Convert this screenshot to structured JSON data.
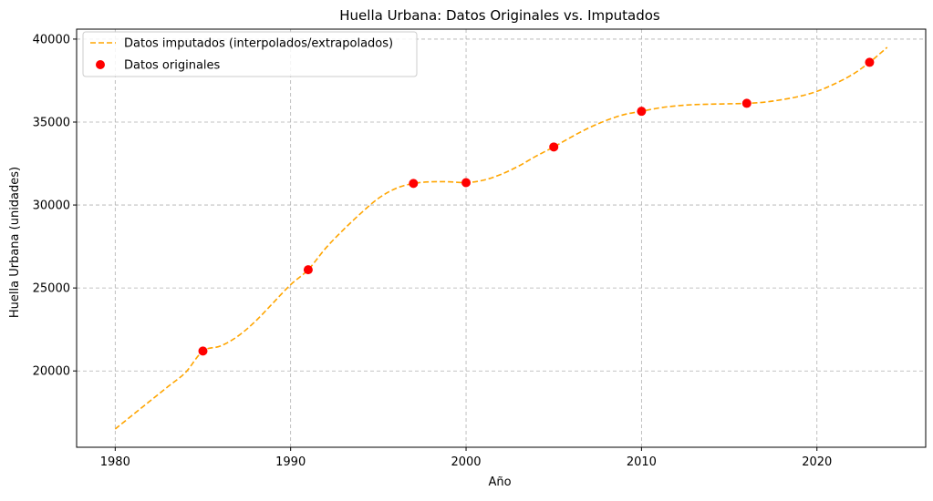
{
  "chart_data": {
    "type": "line",
    "title": "Huella Urbana: Datos Originales vs. Imputados",
    "xlabel": "Año",
    "ylabel": "Huella Urbana (unidades)",
    "xlim": [
      1977.8,
      2026.2
    ],
    "ylim": [
      15400,
      40600
    ],
    "xticks": [
      1980,
      1990,
      2000,
      2010,
      2020
    ],
    "yticks": [
      20000,
      25000,
      30000,
      35000,
      40000
    ],
    "grid": true,
    "legend_position": "top-left",
    "series": [
      {
        "name": "Datos imputados (interpolados/extrapolados)",
        "kind": "line",
        "style": "dashed",
        "color": "#FFA500",
        "x": [
          1980,
          1981,
          1982,
          1983,
          1984,
          1985,
          1986,
          1987,
          1988,
          1989,
          1990,
          1991,
          1992,
          1993,
          1994,
          1995,
          1996,
          1997,
          1998,
          1999,
          2000,
          2001,
          2002,
          2003,
          2004,
          2005,
          2006,
          2007,
          2008,
          2009,
          2010,
          2011,
          2012,
          2013,
          2014,
          2015,
          2016,
          2017,
          2018,
          2019,
          2020,
          2021,
          2022,
          2023,
          2024
        ],
        "y": [
          16500,
          17350,
          18200,
          19050,
          19900,
          21200,
          21500,
          22100,
          23000,
          24100,
          25200,
          26100,
          27400,
          28500,
          29500,
          30400,
          31000,
          31300,
          31400,
          31400,
          31350,
          31500,
          31850,
          32350,
          32950,
          33500,
          34100,
          34650,
          35100,
          35450,
          35650,
          35850,
          35980,
          36050,
          36080,
          36100,
          36130,
          36200,
          36350,
          36550,
          36850,
          37300,
          37850,
          38600,
          39500
        ]
      },
      {
        "name": "Datos originales",
        "kind": "scatter",
        "color": "#FF0000",
        "x": [
          1985,
          1991,
          1997,
          2000,
          2005,
          2010,
          2016,
          2023
        ],
        "y": [
          21200,
          26100,
          31300,
          31350,
          33500,
          35650,
          36130,
          38600
        ]
      }
    ]
  }
}
